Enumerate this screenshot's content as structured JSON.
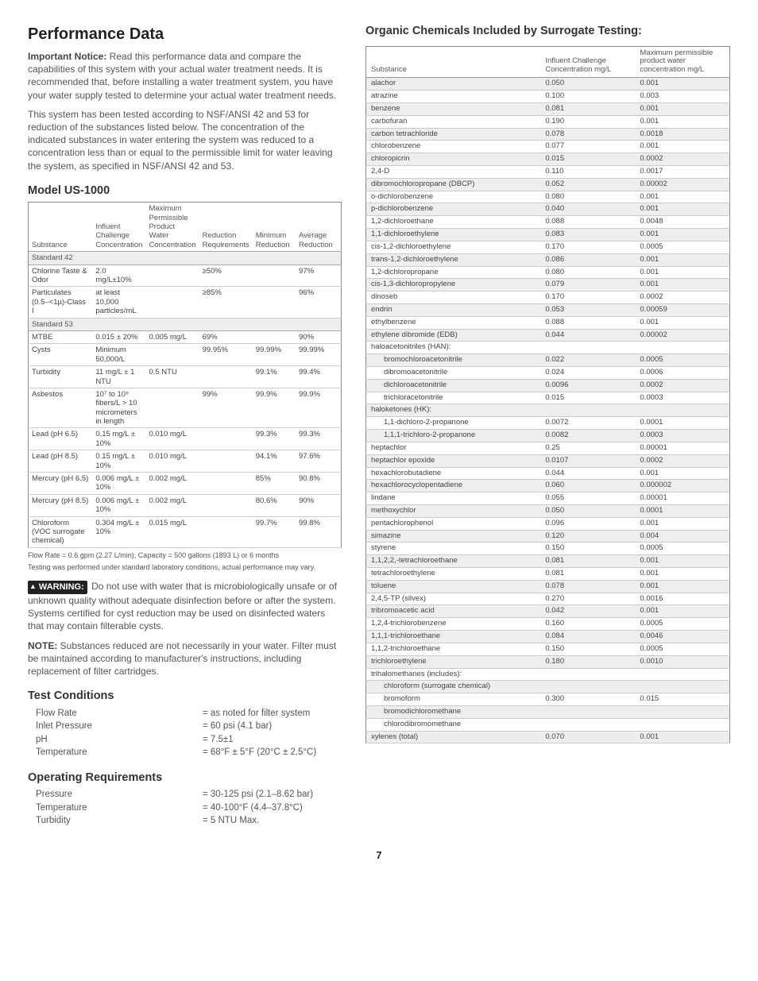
{
  "left": {
    "title": "Performance Data",
    "noticeLabel": "Important Notice:",
    "noticeBody": " Read this performance data and compare the capabilities of this system with your actual water treatment needs. It is recommended that, before installing a water treatment system, you have your water supply tested to determine your actual water treatment needs.",
    "para2": "This system has been tested according to NSF/ANSI 42 and 53 for reduction of the substances listed below. The concentration of the indicated substances in water entering the system was reduced to a concentration less than or equal to the permissible limit for water leaving the system, as specified in NSF/ANSI 42 and 53.",
    "modelHeading": "Model US-1000",
    "mtHead": [
      "Substance",
      "Influent Challenge Concentration",
      "Maximum Permissible Product Water Concentration",
      "Reduction Requirements",
      "Minimum Reduction",
      "Average Reduction"
    ],
    "sec42": "Standard 42",
    "mt42": [
      [
        "Chlorine Taste & Odor",
        "2.0 mg/L±10%",
        "",
        "≥50%",
        "",
        "97%"
      ],
      [
        "Particulates (0.5–<1µ)-Class I",
        "at least 10,000 particles/mL",
        "",
        "≥85%",
        "",
        "96%"
      ]
    ],
    "sec53": "Standard 53",
    "mt53": [
      [
        "MTBE",
        "0.015 ± 20%",
        "0.005 mg/L",
        "69%",
        "",
        "90%"
      ],
      [
        "Cysts",
        "Minimum 50,000/L",
        "",
        "99.95%",
        "99.99%",
        "99.99%"
      ],
      [
        "Turbidity",
        "11 mg/L ± 1 NTU",
        "0.5 NTU",
        "",
        "99.1%",
        "99.4%"
      ],
      [
        "Asbestos",
        "10⁷ to 10⁸ fibers/L > 10 micrometers in length",
        "",
        "99%",
        "99.9%",
        "99.9%"
      ],
      [
        "Lead (pH 6.5)",
        "0.15 mg/L ± 10%",
        "0.010 mg/L",
        "",
        "99.3%",
        "99.3%"
      ],
      [
        "Lead (pH 8.5)",
        "0.15 mg/L ± 10%",
        "0.010 mg/L",
        "",
        "94.1%",
        "97.6%"
      ],
      [
        "Mercury (pH 6.5)",
        "0.006 mg/L ± 10%",
        "0.002 mg/L",
        "",
        "85%",
        "90.8%"
      ],
      [
        "Mercury (pH 8.5)",
        "0.006 mg/L ± 10%",
        "0.002 mg/L",
        "",
        "80.6%",
        "90%"
      ],
      [
        "Chloroform (VOC surrogate chemical)",
        "0.304 mg/L ± 10%",
        "0.015 mg/L",
        "",
        "99.7%",
        "99.8%"
      ]
    ],
    "foot1": "Flow Rate = 0.6 gpm (2.27 L/min); Capacity = 500 gallons (1893 L) or 6 months",
    "foot2": "Testing was performed under standard laboratory conditions, actual performance may vary.",
    "warnLabel": "WARNING:",
    "warnBody": " Do not use with water that is microbiologically unsafe or of unknown quality without adequate disinfection before or after the system. Systems certified for cyst reduction may be used on disinfected waters that may contain filterable cysts.",
    "noteLabel": "NOTE:",
    "noteBody": " Substances reduced are not necessarily in your water. Filter must be maintained according to manufacturer's instructions, including replacement of filter cartridges.",
    "tcHeading": "Test Conditions",
    "tc": [
      [
        "Flow Rate",
        "= as noted for filter system"
      ],
      [
        "Inlet Pressure",
        "= 60 psi (4.1 bar)"
      ],
      [
        "pH",
        "= 7.5±1"
      ],
      [
        "Temperature",
        "= 68°F ± 5°F (20°C ± 2.5°C)"
      ]
    ],
    "orHeading": "Operating Requirements",
    "or": [
      [
        "Pressure",
        "= 30-125 psi (2.1–8.62 bar)"
      ],
      [
        "Temperature",
        "= 40-100°F (4.4–37.8°C)"
      ],
      [
        "Turbidity",
        "= 5 NTU Max."
      ]
    ]
  },
  "right": {
    "title": "Organic Chemicals Included by Surrogate Testing:",
    "head": [
      "Substance",
      "Influent Challenge Concentration mg/L",
      "Maximum permissible product water concentration mg/L"
    ],
    "rows": [
      {
        "c": [
          "alachor",
          "0.050",
          "0.001"
        ],
        "odd": true
      },
      {
        "c": [
          "atrazine",
          "0.100",
          "0.003"
        ]
      },
      {
        "c": [
          "benzene",
          "0.081",
          "0.001"
        ],
        "odd": true
      },
      {
        "c": [
          "carbofuran",
          "0.190",
          "0.001"
        ]
      },
      {
        "c": [
          "carbon tetrachloride",
          "0.078",
          "0.0018"
        ],
        "odd": true
      },
      {
        "c": [
          "chlorobenzene",
          "0.077",
          "0.001"
        ]
      },
      {
        "c": [
          "chloropicrin",
          "0.015",
          "0.0002"
        ],
        "odd": true
      },
      {
        "c": [
          "2,4-D",
          "0.110",
          "0.0017"
        ]
      },
      {
        "c": [
          "dibromochloropropane (DBCP)",
          "0.052",
          "0.00002"
        ],
        "odd": true
      },
      {
        "c": [
          "o-dichlorobenzene",
          "0.080",
          "0.001"
        ]
      },
      {
        "c": [
          "p-dichlorobenzene",
          "0.040",
          "0.001"
        ],
        "odd": true
      },
      {
        "c": [
          "1,2-dichloroethane",
          "0.088",
          "0.0048"
        ]
      },
      {
        "c": [
          "1,1-dichloroethylene",
          "0.083",
          "0.001"
        ],
        "odd": true
      },
      {
        "c": [
          "cis-1,2-dichloroethylene",
          "0.170",
          "0.0005"
        ]
      },
      {
        "c": [
          "trans-1,2-dichloroethylene",
          "0.086",
          "0.001"
        ],
        "odd": true
      },
      {
        "c": [
          "1,2-dichloropropane",
          "0.080",
          "0.001"
        ]
      },
      {
        "c": [
          "cis-1,3-dichloropropylene",
          "0.079",
          "0.001"
        ],
        "odd": true
      },
      {
        "c": [
          "dinoseb",
          "0.170",
          "0.0002"
        ]
      },
      {
        "c": [
          "endrin",
          "0.053",
          "0.00059"
        ],
        "odd": true
      },
      {
        "c": [
          "ethylbenzene",
          "0.088",
          "0.001"
        ]
      },
      {
        "c": [
          "ethylene dibromide (EDB)",
          "0.044",
          "0.00002"
        ],
        "odd": true
      },
      {
        "c": [
          "haloacetonitriles (HAN):",
          "",
          ""
        ]
      },
      {
        "c": [
          "bromochloroacetonitrile",
          "0.022",
          "0.0005"
        ],
        "odd": true,
        "indent": true
      },
      {
        "c": [
          "dibromoacetonitrile",
          "0.024",
          "0.0006"
        ],
        "indent": true
      },
      {
        "c": [
          "dichloroacetonitrile",
          "0.0096",
          "0.0002"
        ],
        "odd": true,
        "indent": true
      },
      {
        "c": [
          "trichloracetonitrile",
          "0.015",
          "0.0003"
        ],
        "indent": true
      },
      {
        "c": [
          "haloketones (HK):",
          "",
          ""
        ],
        "odd": true
      },
      {
        "c": [
          "1,1-dichloro-2-propanone",
          "0.0072",
          "0.0001"
        ],
        "indent": true
      },
      {
        "c": [
          "1,1,1-trichloro-2-propanone",
          "0.0082",
          "0.0003"
        ],
        "odd": true,
        "indent": true
      },
      {
        "c": [
          "heptachlor",
          "0.25",
          "0.00001"
        ]
      },
      {
        "c": [
          "heptachlor epoxide",
          "0.0107",
          "0.0002"
        ],
        "odd": true
      },
      {
        "c": [
          "hexachlorobutadiene",
          "0.044",
          "0.001"
        ]
      },
      {
        "c": [
          "hexachlorocyclopentadiene",
          "0.060",
          "0.000002"
        ],
        "odd": true
      },
      {
        "c": [
          "lindane",
          "0.055",
          "0.00001"
        ]
      },
      {
        "c": [
          "methoxychlor",
          "0.050",
          "0.0001"
        ],
        "odd": true
      },
      {
        "c": [
          "pentachlorophenol",
          "0.096",
          "0.001"
        ]
      },
      {
        "c": [
          "simazine",
          "0.120",
          "0.004"
        ],
        "odd": true
      },
      {
        "c": [
          "styrene",
          "0.150",
          "0.0005"
        ]
      },
      {
        "c": [
          "1,1,2,2,-tetrachloroethane",
          "0.081",
          "0.001"
        ],
        "odd": true
      },
      {
        "c": [
          "tetrachloroethylene",
          "0.081",
          "0.001"
        ]
      },
      {
        "c": [
          "toluene",
          "0.078",
          "0.001"
        ],
        "odd": true
      },
      {
        "c": [
          "2,4,5-TP (silvex)",
          "0.270",
          "0.0016"
        ]
      },
      {
        "c": [
          "tribromoacetic acid",
          "0.042",
          "0.001"
        ],
        "odd": true
      },
      {
        "c": [
          "1,2,4-trichlorobenzene",
          "0.160",
          "0.0005"
        ]
      },
      {
        "c": [
          "1,1,1-trichloroethane",
          "0.084",
          "0.0046"
        ],
        "odd": true
      },
      {
        "c": [
          "1,1,2-trichloroethane",
          "0.150",
          "0.0005"
        ]
      },
      {
        "c": [
          "trichloroethylene",
          "0.180",
          "0.0010"
        ],
        "odd": true
      },
      {
        "c": [
          "trihalomethanes (includes):",
          "",
          ""
        ]
      },
      {
        "c": [
          "chloroform (surrogate chemical)",
          "",
          ""
        ],
        "odd": true,
        "indent": true
      },
      {
        "c": [
          "bromoform",
          "0.300",
          "0.015"
        ],
        "indent": true
      },
      {
        "c": [
          "bromodichloromethane",
          "",
          ""
        ],
        "odd": true,
        "indent": true
      },
      {
        "c": [
          "chlorodibromomethane",
          "",
          ""
        ],
        "indent": true
      },
      {
        "c": [
          "xylenes (total)",
          "0.070",
          "0.001"
        ],
        "odd": true
      }
    ]
  },
  "pageNum": "7"
}
